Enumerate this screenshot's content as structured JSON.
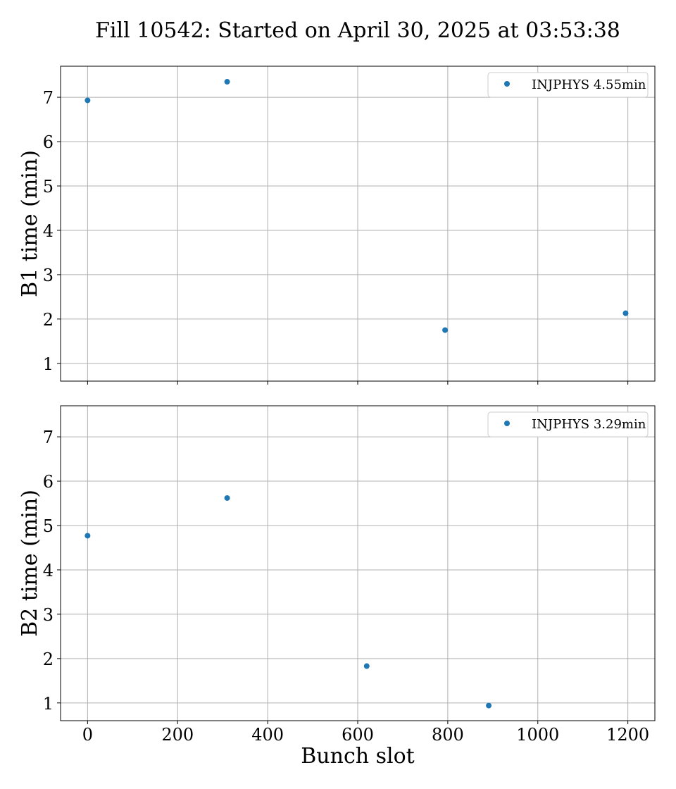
{
  "chart_data": {
    "type": "scatter",
    "title": "Fill 10542: Started on April 30, 2025 at 03:53:38",
    "xlabel": "Bunch slot",
    "xlim": [
      -60,
      1260
    ],
    "xticks": [
      0,
      200,
      400,
      600,
      800,
      1000,
      1200
    ],
    "grid": true,
    "legend_position": "top-right",
    "color": "#1f77b4",
    "panels": [
      {
        "ylabel": "B1 time (min)",
        "ylim": [
          0.6,
          7.7
        ],
        "yticks": [
          1,
          2,
          3,
          4,
          5,
          6,
          7
        ],
        "show_xtick_labels": false,
        "series": [
          {
            "name": "INJPHYS 4.55min",
            "x": [
              0,
              310,
              794,
              1195
            ],
            "y": [
              6.93,
              7.35,
              1.75,
              2.13
            ]
          }
        ]
      },
      {
        "ylabel": "B2 time (min)",
        "ylim": [
          0.6,
          7.7
        ],
        "yticks": [
          1,
          2,
          3,
          4,
          5,
          6,
          7
        ],
        "show_xtick_labels": true,
        "series": [
          {
            "name": "INJPHYS 3.29min",
            "x": [
              0,
              310,
              620,
              891
            ],
            "y": [
              4.77,
              5.62,
              1.83,
              0.94
            ]
          }
        ]
      }
    ]
  }
}
